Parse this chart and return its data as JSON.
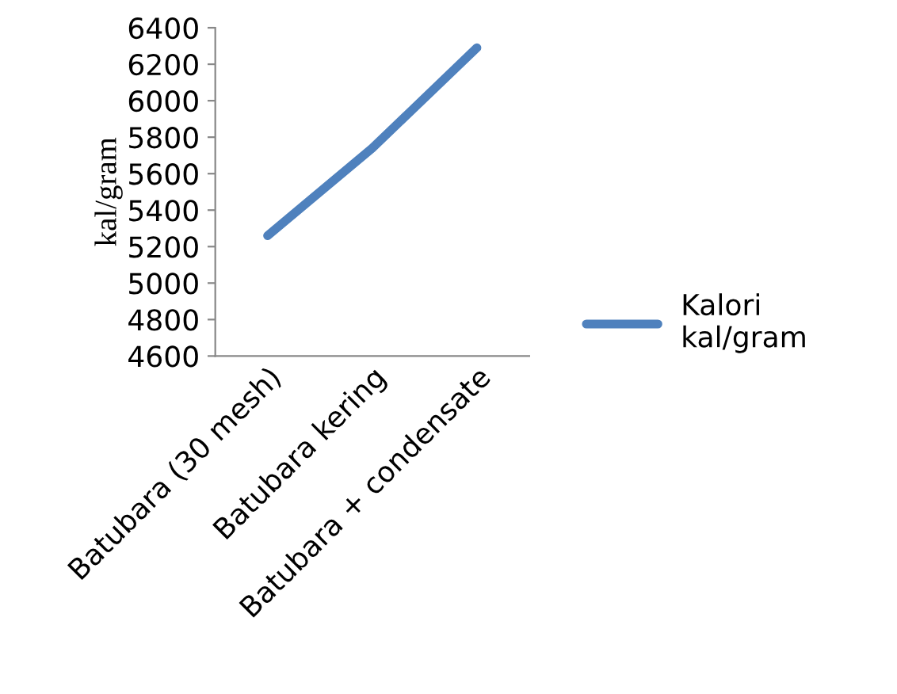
{
  "chart_data": {
    "type": "line",
    "ylabel": "kal/gram",
    "categories": [
      "Batubara (30 mesh)",
      "Batubara kering",
      "Batubara + condensate"
    ],
    "series": [
      {
        "name": "Kalori kal/gram",
        "color": "#4f81bd",
        "values": [
          5260,
          5740,
          6290
        ]
      }
    ],
    "ylim": [
      4600,
      6400
    ],
    "yticks": [
      4600,
      4800,
      5000,
      5200,
      5400,
      5600,
      5800,
      6000,
      6200,
      6400
    ],
    "grid": false,
    "legend": "right",
    "marker": "none",
    "line_style": "solid"
  }
}
